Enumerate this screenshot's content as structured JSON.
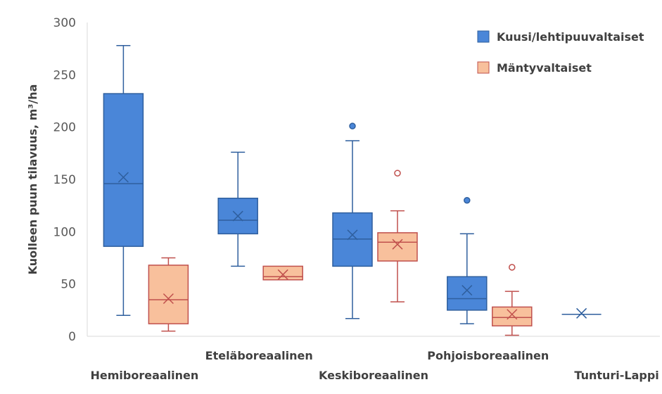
{
  "chart_data": {
    "type": "box",
    "title": "",
    "xlabel": "",
    "ylabel": "Kuolleen puun tilavuus, m³/ha",
    "ylim": [
      0,
      300
    ],
    "yticks": [
      0,
      50,
      100,
      150,
      200,
      250,
      300
    ],
    "grid": false,
    "legend_position": "top-right",
    "categories": [
      "Hemiboreaalinen",
      "Eteläboreaalinen",
      "Keskiboreaalinen",
      "Pohjoisboreaalinen",
      "Tunturi-Lappi"
    ],
    "series": [
      {
        "name": "Kuusi/lehtipuuvaltaiset",
        "color": "#4a86d8",
        "stroke": "#2f5f9e",
        "boxes": [
          {
            "min": 20,
            "q1": 86,
            "median": 146,
            "q3": 232,
            "max": 278,
            "mean": 152,
            "outliers": []
          },
          {
            "min": 67,
            "q1": 98,
            "median": 111,
            "q3": 132,
            "max": 176,
            "mean": 115,
            "outliers": []
          },
          {
            "min": 17,
            "q1": 67,
            "median": 93,
            "q3": 118,
            "max": 187,
            "mean": 97,
            "outliers": [
              201
            ]
          },
          {
            "min": 12,
            "q1": 25,
            "median": 36,
            "q3": 57,
            "max": 98,
            "mean": 44,
            "outliers": [
              130
            ]
          },
          {
            "min": 21,
            "q1": 21,
            "median": 21,
            "q3": 21,
            "max": 21,
            "mean": 22,
            "outliers": []
          }
        ]
      },
      {
        "name": "Mäntyvaltaiset",
        "color": "#f8c09c",
        "stroke": "#c0504d",
        "boxes": [
          {
            "min": 5,
            "q1": 12,
            "median": 35,
            "q3": 68,
            "max": 75,
            "mean": 36,
            "outliers": []
          },
          {
            "min": 54,
            "q1": 54,
            "median": 57,
            "q3": 67,
            "max": 67,
            "mean": 59,
            "outliers": []
          },
          {
            "min": 33,
            "q1": 72,
            "median": 90,
            "q3": 99,
            "max": 120,
            "mean": 88,
            "outliers": [
              156
            ]
          },
          {
            "min": 1,
            "q1": 10,
            "median": 18,
            "q3": 28,
            "max": 43,
            "mean": 21,
            "outliers": [
              66
            ]
          },
          null
        ]
      }
    ]
  }
}
